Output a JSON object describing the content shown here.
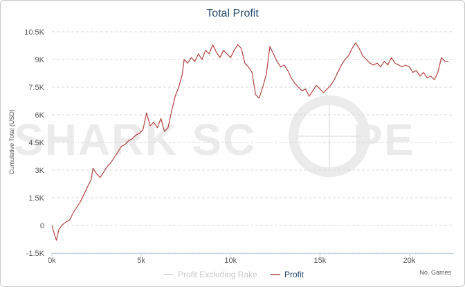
{
  "chart_data": {
    "type": "line",
    "title": "Total Profit",
    "ylabel": "Cumulative Total (USD)",
    "xlabel": "No. Games",
    "xlim": [
      0,
      22500
    ],
    "ylim": [
      -1500,
      10500
    ],
    "y_ticks": [
      {
        "value": -1500,
        "label": "-1.5K"
      },
      {
        "value": 0,
        "label": "0"
      },
      {
        "value": 1500,
        "label": "1.5K"
      },
      {
        "value": 3000,
        "label": "3K"
      },
      {
        "value": 4500,
        "label": "4.5K"
      },
      {
        "value": 6000,
        "label": "6K"
      },
      {
        "value": 7500,
        "label": "7.5K"
      },
      {
        "value": 9000,
        "label": "9K"
      },
      {
        "value": 10500,
        "label": "10.5K"
      }
    ],
    "x_ticks": [
      {
        "value": 0,
        "label": "0k"
      },
      {
        "value": 5000,
        "label": "5k"
      },
      {
        "value": 10000,
        "label": "10k"
      },
      {
        "value": 15000,
        "label": "15k"
      },
      {
        "value": 20000,
        "label": "20k"
      }
    ],
    "series": [
      {
        "name": "Profit",
        "color": "#b2403f",
        "points": [
          [
            0,
            0
          ],
          [
            150,
            -500
          ],
          [
            250,
            -800
          ],
          [
            400,
            -200
          ],
          [
            600,
            50
          ],
          [
            800,
            200
          ],
          [
            1000,
            300
          ],
          [
            1200,
            700
          ],
          [
            1400,
            1000
          ],
          [
            1600,
            1300
          ],
          [
            1800,
            1700
          ],
          [
            2000,
            2100
          ],
          [
            2200,
            2500
          ],
          [
            2300,
            3100
          ],
          [
            2500,
            2800
          ],
          [
            2700,
            2600
          ],
          [
            2900,
            2900
          ],
          [
            3100,
            3200
          ],
          [
            3300,
            3400
          ],
          [
            3500,
            3700
          ],
          [
            3700,
            4000
          ],
          [
            3900,
            4300
          ],
          [
            4100,
            4400
          ],
          [
            4300,
            4600
          ],
          [
            4500,
            4700
          ],
          [
            4700,
            4900
          ],
          [
            4900,
            5000
          ],
          [
            5100,
            5200
          ],
          [
            5300,
            6100
          ],
          [
            5500,
            5400
          ],
          [
            5700,
            5600
          ],
          [
            5900,
            5300
          ],
          [
            6100,
            5800
          ],
          [
            6300,
            5100
          ],
          [
            6500,
            5300
          ],
          [
            6700,
            6200
          ],
          [
            6900,
            7000
          ],
          [
            7100,
            7500
          ],
          [
            7300,
            8200
          ],
          [
            7400,
            9000
          ],
          [
            7600,
            8800
          ],
          [
            7800,
            9100
          ],
          [
            8000,
            8900
          ],
          [
            8200,
            9300
          ],
          [
            8400,
            9000
          ],
          [
            8600,
            9500
          ],
          [
            8800,
            9300
          ],
          [
            9000,
            9800
          ],
          [
            9200,
            9400
          ],
          [
            9400,
            9100
          ],
          [
            9600,
            9500
          ],
          [
            9800,
            9300
          ],
          [
            10000,
            9100
          ],
          [
            10200,
            9500
          ],
          [
            10400,
            9800
          ],
          [
            10600,
            9600
          ],
          [
            10800,
            8800
          ],
          [
            11000,
            8600
          ],
          [
            11200,
            8300
          ],
          [
            11400,
            7100
          ],
          [
            11600,
            6900
          ],
          [
            11800,
            7500
          ],
          [
            12000,
            8200
          ],
          [
            12200,
            9700
          ],
          [
            12400,
            9300
          ],
          [
            12600,
            8900
          ],
          [
            12800,
            8600
          ],
          [
            13000,
            8700
          ],
          [
            13200,
            8400
          ],
          [
            13400,
            8000
          ],
          [
            13600,
            7700
          ],
          [
            13800,
            7500
          ],
          [
            14000,
            7300
          ],
          [
            14200,
            7400
          ],
          [
            14400,
            7000
          ],
          [
            14600,
            7300
          ],
          [
            14800,
            7600
          ],
          [
            15000,
            7400
          ],
          [
            15200,
            7200
          ],
          [
            15400,
            7400
          ],
          [
            15600,
            7600
          ],
          [
            15800,
            7900
          ],
          [
            16000,
            8300
          ],
          [
            16200,
            8700
          ],
          [
            16400,
            9000
          ],
          [
            16600,
            9200
          ],
          [
            16800,
            9600
          ],
          [
            17000,
            9900
          ],
          [
            17200,
            9600
          ],
          [
            17400,
            9200
          ],
          [
            17600,
            9000
          ],
          [
            17800,
            8800
          ],
          [
            18000,
            8700
          ],
          [
            18200,
            8800
          ],
          [
            18400,
            8600
          ],
          [
            18600,
            8900
          ],
          [
            18800,
            8700
          ],
          [
            19000,
            9100
          ],
          [
            19200,
            8800
          ],
          [
            19400,
            8700
          ],
          [
            19600,
            8600
          ],
          [
            19800,
            8700
          ],
          [
            20000,
            8600
          ],
          [
            20200,
            8300
          ],
          [
            20400,
            8400
          ],
          [
            20600,
            8100
          ],
          [
            20800,
            8300
          ],
          [
            21000,
            8000
          ],
          [
            21200,
            8100
          ],
          [
            21400,
            7900
          ],
          [
            21600,
            8300
          ],
          [
            21800,
            9100
          ],
          [
            22000,
            8900
          ],
          [
            22200,
            8900
          ]
        ]
      }
    ],
    "legend": [
      {
        "label": "Profit Excluding Rake",
        "color": "#d0d0d0",
        "muted": true
      },
      {
        "label": "Profit",
        "color": "#b2403f",
        "muted": false
      }
    ],
    "legend_position": "bottom-center",
    "grid": true,
    "watermark": "SHARK SCOPE"
  }
}
